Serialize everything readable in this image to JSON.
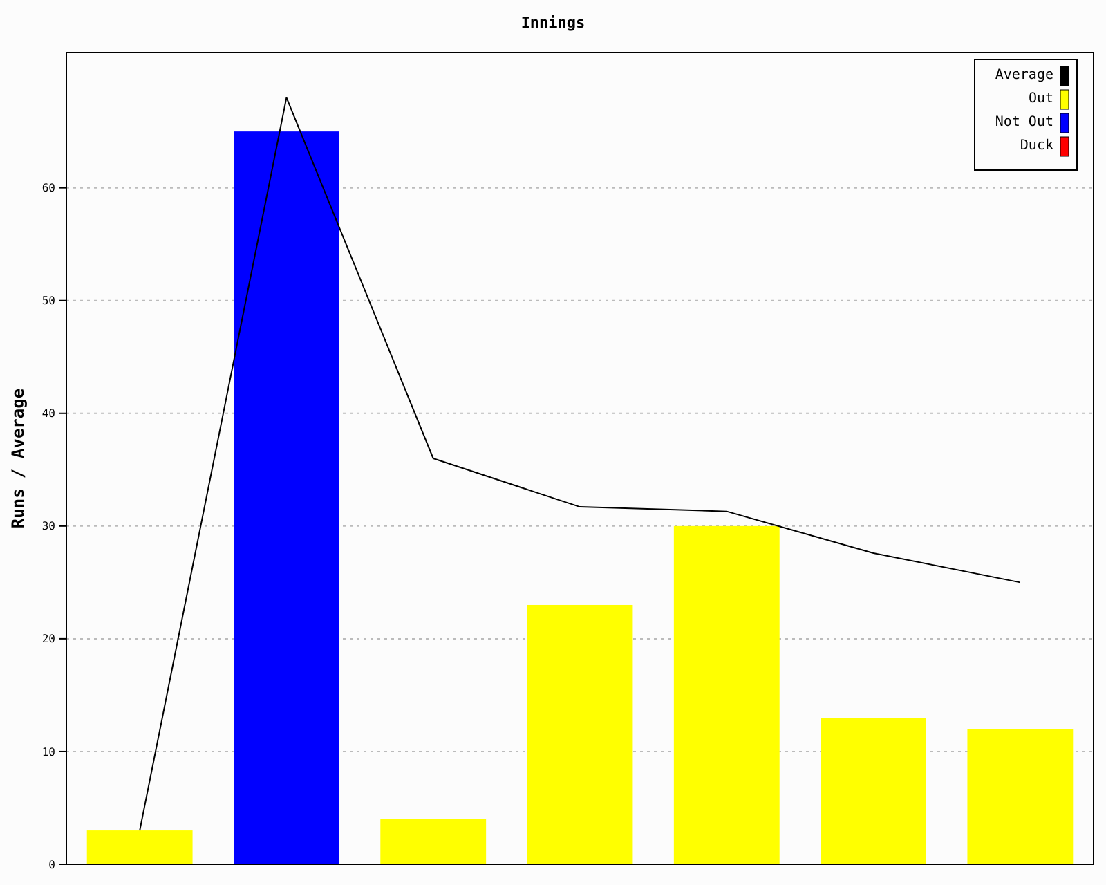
{
  "chart_data": {
    "type": "bar",
    "title": "Innings",
    "ylabel": "Runs / Average",
    "categories": [
      null,
      null,
      null,
      null,
      null,
      null,
      null
    ],
    "stacked": true,
    "series": [
      {
        "name": "Average",
        "type": "line",
        "color": "#000000",
        "values": [
          3,
          68,
          36,
          31.7,
          31.3,
          27.6,
          25
        ]
      },
      {
        "name": "Out",
        "color": "#ffff00",
        "values": [
          3,
          null,
          4,
          23,
          30,
          13,
          12
        ]
      },
      {
        "name": "Not Out",
        "color": "#0000ff",
        "values": [
          null,
          65,
          null,
          null,
          null,
          null,
          null
        ]
      },
      {
        "name": "Duck",
        "color": "#ff0000",
        "values": [
          null,
          null,
          null,
          null,
          null,
          null,
          null
        ]
      }
    ],
    "ylim": [
      0,
      72
    ],
    "yticks": [
      0,
      10,
      20,
      30,
      40,
      50,
      60
    ],
    "grid": "y",
    "legend": "top right",
    "marker": "none"
  }
}
